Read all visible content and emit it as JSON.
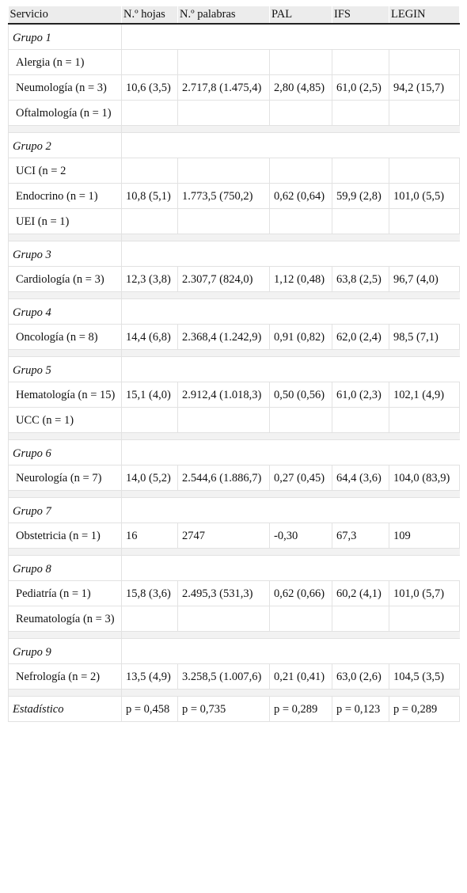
{
  "headers": [
    "Servicio",
    "N.º hojas",
    "N.º palabras",
    "PAL",
    "IFS",
    "LEGIN"
  ],
  "groups": [
    {
      "title": "Grupo 1",
      "rows": [
        [
          "Alergia (n = 1)",
          "",
          "",
          "",
          "",
          ""
        ],
        [
          "Neumología (n = 3)",
          "10,6 (3,5)",
          "2.717,8 (1.475,4)",
          "2,80 (4,85)",
          "61,0 (2,5)",
          "94,2 (15,7)"
        ],
        [
          "Oftalmología (n = 1)",
          "",
          "",
          "",
          "",
          ""
        ]
      ]
    },
    {
      "title": "Grupo 2",
      "rows": [
        [
          "UCI (n = 2",
          "",
          "",
          "",
          "",
          ""
        ],
        [
          "Endocrino (n = 1)",
          "10,8 (5,1)",
          "1.773,5 (750,2)",
          "0,62 (0,64)",
          "59,9 (2,8)",
          "101,0 (5,5)"
        ],
        [
          "UEI (n = 1)",
          "",
          "",
          "",
          "",
          ""
        ]
      ]
    },
    {
      "title": "Grupo 3",
      "rows": [
        [
          "Cardiología (n = 3)",
          "12,3 (3,8)",
          "2.307,7 (824,0)",
          "1,12 (0,48)",
          "63,8 (2,5)",
          "96,7 (4,0)"
        ]
      ]
    },
    {
      "title": "Grupo 4",
      "rows": [
        [
          "Oncología (n = 8)",
          "14,4 (6,8)",
          "2.368,4 (1.242,9)",
          "0,91 (0,82)",
          "62,0 (2,4)",
          "98,5 (7,1)"
        ]
      ]
    },
    {
      "title": "Grupo 5",
      "rows": [
        [
          "Hematología (n = 15)",
          "15,1 (4,0)",
          "2.912,4 (1.018,3)",
          "0,50 (0,56)",
          "61,0 (2,3)",
          "102,1 (4,9)"
        ],
        [
          "UCC (n = 1)",
          "",
          "",
          "",
          "",
          ""
        ]
      ]
    },
    {
      "title": "Grupo 6",
      "rows": [
        [
          "Neurología (n = 7)",
          "14,0 (5,2)",
          "2.544,6 (1.886,7)",
          "0,27 (0,45)",
          "64,4 (3,6)",
          "104,0 (83,9)"
        ]
      ]
    },
    {
      "title": "Grupo 7",
      "rows": [
        [
          "Obstetricia (n = 1)",
          "16",
          "2747",
          "-0,30",
          "67,3",
          "109"
        ]
      ]
    },
    {
      "title": "Grupo 8",
      "rows": [
        [
          "Pediatría (n = 1)",
          "15,8 (3,6)",
          "2.495,3 (531,3)",
          "0,62 (0,66)",
          "60,2 (4,1)",
          "101,0 (5,7)"
        ],
        [
          "Reumatología (n = 3)",
          "",
          "",
          "",
          "",
          ""
        ]
      ]
    },
    {
      "title": "Grupo 9",
      "rows": [
        [
          "Nefrología (n = 2)",
          "13,5 (4,9)",
          "3.258,5 (1.007,6)",
          "0,21 (0,41)",
          "63,0 (2,6)",
          "104,5 (3,5)"
        ]
      ]
    }
  ],
  "statistic": [
    "Estadístico",
    "p = 0,458",
    "p = 0,735",
    "p = 0,289",
    "p = 0,123",
    "p = 0,289"
  ]
}
